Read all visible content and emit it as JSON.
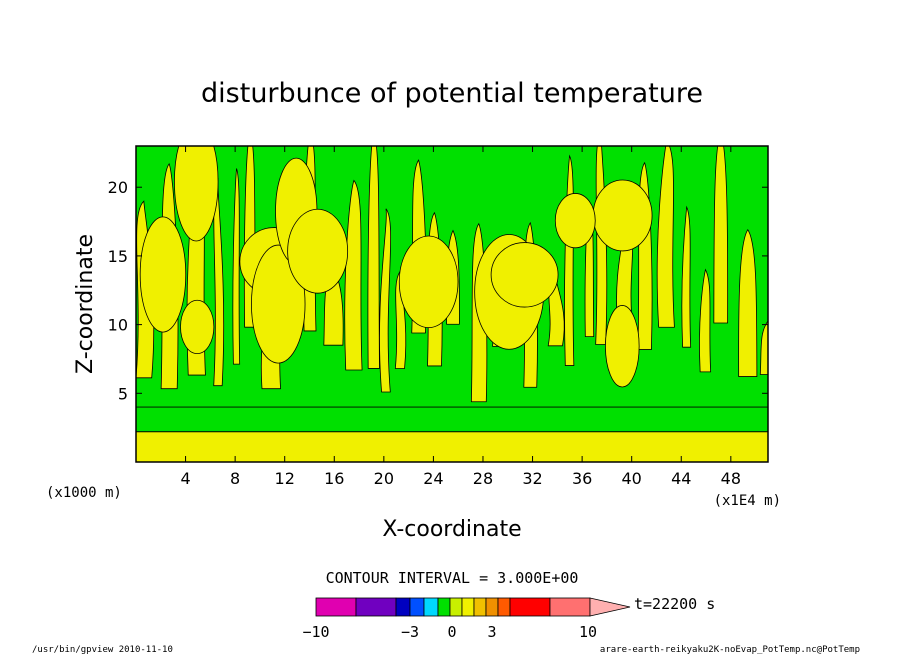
{
  "chart_data": {
    "type": "heatmap",
    "title": "disturbunce of potential temperature",
    "xlabel": "X-coordinate",
    "ylabel": "Z-coordinate",
    "x_scale_label": "(x1E4 m)",
    "y_scale_label": "(x1000 m)",
    "xlim": [
      0,
      51
    ],
    "ylim": [
      0,
      23
    ],
    "x_ticks": [
      4,
      8,
      12,
      16,
      20,
      24,
      28,
      32,
      36,
      40,
      44,
      48
    ],
    "y_ticks": [
      5,
      10,
      15,
      20
    ],
    "x_tick_labels": [
      "4",
      "8",
      "12",
      "16",
      "20",
      "24",
      "28",
      "32",
      "36",
      "40",
      "44",
      "48"
    ],
    "y_tick_labels": [
      "5",
      "10",
      "15",
      "20"
    ],
    "contour_interval_label": "CONTOUR INTERVAL = 3.000E+00",
    "time_label": "t=22200 s",
    "colorbar": {
      "levels": [
        -10,
        -3,
        0,
        3,
        10
      ],
      "tick_labels": [
        "−10",
        "−3",
        "0",
        "3",
        "10"
      ],
      "colors": [
        "#e000b0",
        "#7000c0",
        "#0000c0",
        "#0050ff",
        "#00d8ff",
        "#00e000",
        "#c8f000",
        "#f0f000",
        "#f0c000",
        "#f09000",
        "#ff5a00",
        "#ff0000",
        "#ff7070",
        "#ffb0b0"
      ]
    },
    "bands": {
      "surface_layer": {
        "z_range": [
          0,
          2.2
        ],
        "color": "#f0f000"
      },
      "green_layer": {
        "z_range": [
          2.2,
          4.0
        ],
        "color": "#00e000"
      },
      "upper_region": {
        "z_range": [
          4.0,
          23
        ],
        "colors": [
          "#00e000",
          "#f0f000"
        ],
        "pattern": "alternating vertical plumes"
      }
    }
  },
  "footer": {
    "left": "/usr/bin/gpview   2010-11-10",
    "right": "arare-earth-reikyaku2K-noEvap_PotTemp.nc@PotTemp"
  }
}
